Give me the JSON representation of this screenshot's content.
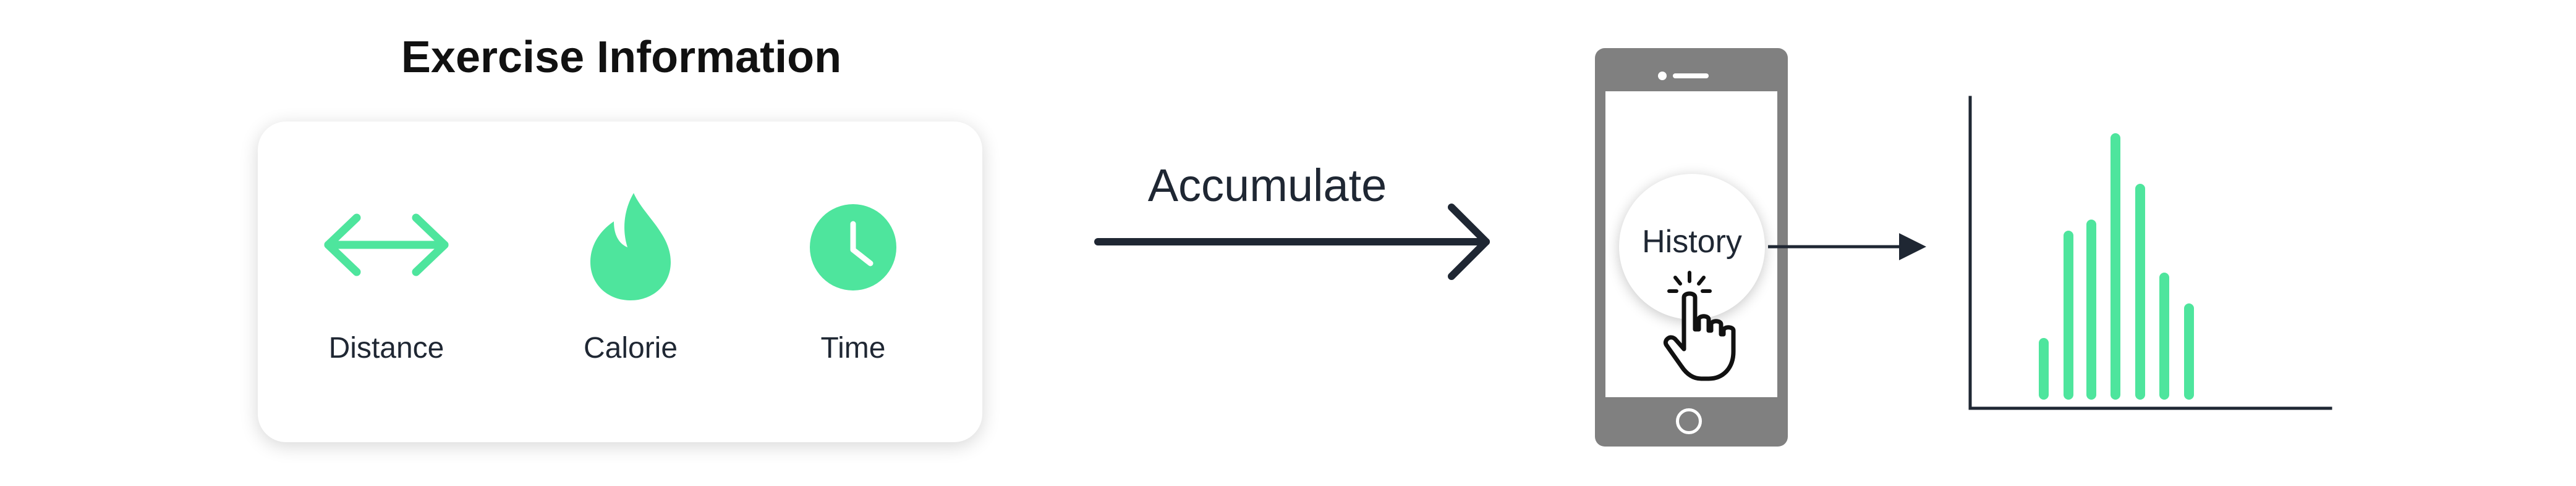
{
  "exercise_info": {
    "title": "Exercise Information",
    "metrics": [
      {
        "label": "Distance",
        "icon": "double-arrow-icon"
      },
      {
        "label": "Calorie",
        "icon": "flame-icon"
      },
      {
        "label": "Time",
        "icon": "clock-icon"
      }
    ]
  },
  "flow": {
    "accumulate_label": "Accumulate"
  },
  "phone": {
    "history_label": "History",
    "icon": "tap-hand-icon"
  },
  "colors": {
    "accent_green": "#4ee59d",
    "dark_navy": "#1f2733",
    "phone_gray": "#808080"
  }
}
